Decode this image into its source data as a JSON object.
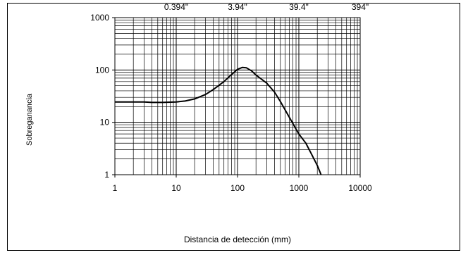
{
  "chart_data": {
    "type": "line",
    "title": "",
    "xlabel": "Distancia de detección (mm)",
    "ylabel": "Sobreganancia",
    "x_scale": "log",
    "y_scale": "log",
    "xlim": [
      1,
      10000
    ],
    "ylim": [
      1,
      1000
    ],
    "x_tick_labels": [
      "1",
      "10",
      "100",
      "1000",
      "10000"
    ],
    "y_tick_labels": [
      "1",
      "10",
      "100",
      "1000"
    ],
    "top_axis_tick_labels": [
      "0.394\"",
      "3.94\"",
      "39.4\"",
      "394\""
    ],
    "grid": true,
    "legend": "none",
    "line_color": "#000000",
    "series": [
      {
        "x": [
          1,
          2,
          3,
          4,
          6,
          10,
          14,
          20,
          30,
          40,
          60,
          80,
          100,
          120,
          140,
          170,
          200,
          300,
          400,
          500,
          700,
          1000,
          1300,
          1600,
          2000,
          2300
        ],
        "y": [
          24.5,
          24.5,
          24.5,
          24,
          24,
          24.5,
          25.5,
          28,
          34,
          42,
          60,
          82,
          103,
          112,
          110,
          96,
          80,
          56,
          38,
          25,
          12.5,
          6,
          4,
          2.5,
          1.5,
          1
        ]
      }
    ]
  }
}
